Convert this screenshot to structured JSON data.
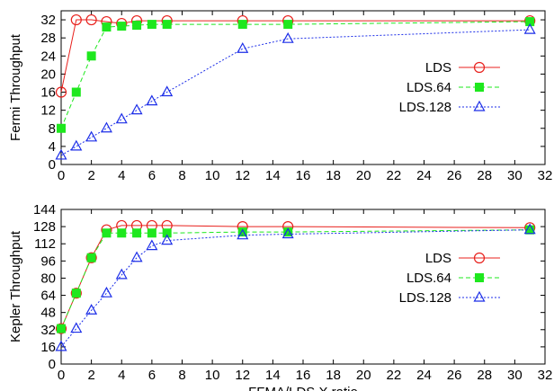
{
  "chart_data": [
    {
      "type": "line",
      "ylabel": "Fermi Throughput",
      "xlabel": "",
      "xlim": [
        0,
        32
      ],
      "ylim": [
        0,
        34
      ],
      "xticks": [
        0,
        2,
        4,
        6,
        8,
        10,
        12,
        14,
        16,
        18,
        20,
        22,
        24,
        26,
        28,
        30,
        32
      ],
      "yticks": [
        0,
        4,
        8,
        12,
        16,
        20,
        24,
        28,
        32
      ],
      "legend_position": "right",
      "series": [
        {
          "name": "LDS",
          "color": "#e8201c",
          "marker": "open-circle",
          "line": "solid",
          "x": [
            0,
            1,
            2,
            3,
            4,
            5,
            7,
            12,
            15,
            31
          ],
          "y": [
            16,
            32,
            32,
            31.6,
            31.2,
            31.8,
            31.8,
            31.8,
            31.8,
            31.8
          ]
        },
        {
          "name": "LDS.64",
          "color": "#1ee81e",
          "marker": "filled-square",
          "line": "dashed",
          "x": [
            0,
            1,
            2,
            3,
            4,
            5,
            6,
            7,
            12,
            15,
            31
          ],
          "y": [
            8,
            16,
            24,
            30.4,
            30.6,
            30.8,
            31,
            31,
            31,
            31,
            31.6
          ]
        },
        {
          "name": "LDS.128",
          "color": "#1c2ee8",
          "marker": "open-triangle",
          "line": "dotted",
          "x": [
            0,
            1,
            2,
            3,
            4,
            5,
            6,
            7,
            12,
            15,
            31
          ],
          "y": [
            2,
            4,
            6,
            8,
            10,
            12,
            14,
            16,
            25.6,
            27.8,
            29.8
          ]
        }
      ]
    },
    {
      "type": "line",
      "ylabel": "Kepler Throughput",
      "xlabel": "FFMA/LDS.X ratio",
      "xlim": [
        0,
        32
      ],
      "ylim": [
        0,
        144
      ],
      "xticks": [
        0,
        2,
        4,
        6,
        8,
        10,
        12,
        14,
        16,
        18,
        20,
        22,
        24,
        26,
        28,
        30,
        32
      ],
      "yticks": [
        0,
        16,
        32,
        48,
        64,
        80,
        96,
        112,
        128,
        144
      ],
      "legend_position": "right",
      "series": [
        {
          "name": "LDS",
          "color": "#e8201c",
          "marker": "open-circle",
          "line": "solid",
          "x": [
            0,
            1,
            2,
            3,
            4,
            5,
            6,
            7,
            12,
            15,
            31
          ],
          "y": [
            33,
            66,
            99,
            125,
            129,
            129,
            129,
            129,
            128,
            128,
            127
          ]
        },
        {
          "name": "LDS.64",
          "color": "#1ee81e",
          "marker": "filled-square",
          "line": "dashed",
          "x": [
            0,
            1,
            2,
            3,
            4,
            5,
            6,
            7,
            12,
            15,
            31
          ],
          "y": [
            33,
            66,
            99,
            122,
            122,
            122,
            122,
            122,
            123,
            123,
            125
          ]
        },
        {
          "name": "LDS.128",
          "color": "#1c2ee8",
          "marker": "open-triangle",
          "line": "dotted",
          "x": [
            0,
            1,
            2,
            3,
            4,
            5,
            6,
            7,
            12,
            15,
            31
          ],
          "y": [
            16,
            33,
            50,
            66,
            83,
            99,
            110,
            115,
            120,
            121,
            125
          ]
        }
      ]
    }
  ]
}
